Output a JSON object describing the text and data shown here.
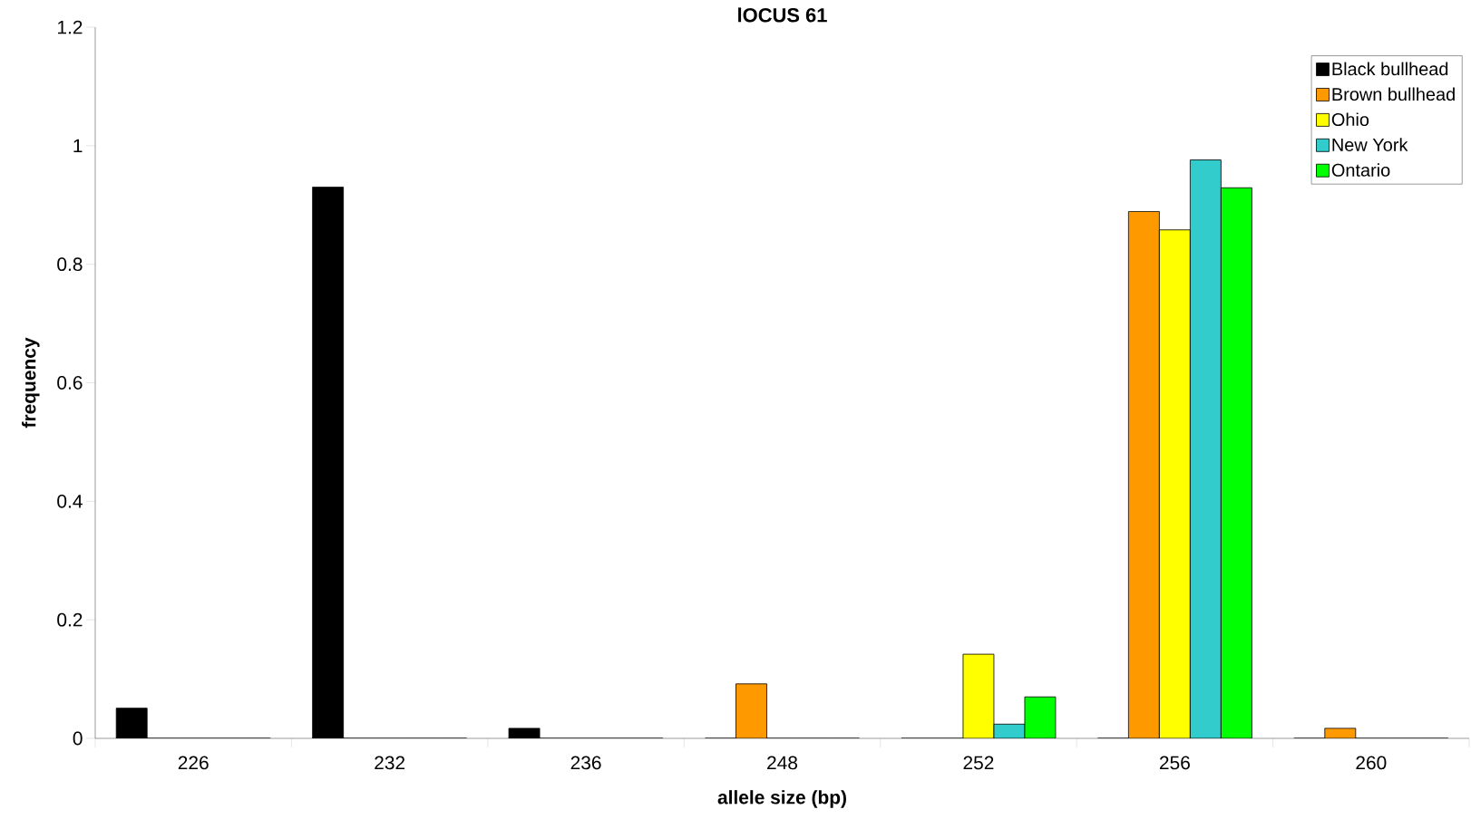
{
  "chart_data": {
    "type": "bar",
    "title": "lOCUS 61",
    "xlabel": "allele size (bp)",
    "ylabel": "frequency",
    "categories": [
      "226",
      "232",
      "236",
      "248",
      "252",
      "256",
      "260"
    ],
    "series": [
      {
        "name": "Black bullhead",
        "color": "#000000",
        "values": [
          0.051,
          0.93,
          0.017,
          0,
          0,
          0,
          0
        ]
      },
      {
        "name": "Brown bullhead",
        "color": "#ff9900",
        "values": [
          0,
          0,
          0,
          0.092,
          0,
          0.889,
          0.017
        ]
      },
      {
        "name": "Ohio",
        "color": "#ffff00",
        "values": [
          0,
          0,
          0,
          0,
          0.142,
          0.858,
          0
        ]
      },
      {
        "name": "New York",
        "color": "#33cccc",
        "values": [
          0,
          0,
          0,
          0,
          0.024,
          0.976,
          0
        ]
      },
      {
        "name": "Ontario",
        "color": "#00ff00",
        "values": [
          0,
          0,
          0,
          0,
          0.07,
          0.929,
          0
        ]
      }
    ],
    "ylim": [
      0,
      1.2
    ],
    "yticks": [
      0,
      0.2,
      0.4,
      0.6,
      0.8,
      1,
      1.2
    ],
    "grid": false,
    "legend": "top right"
  }
}
